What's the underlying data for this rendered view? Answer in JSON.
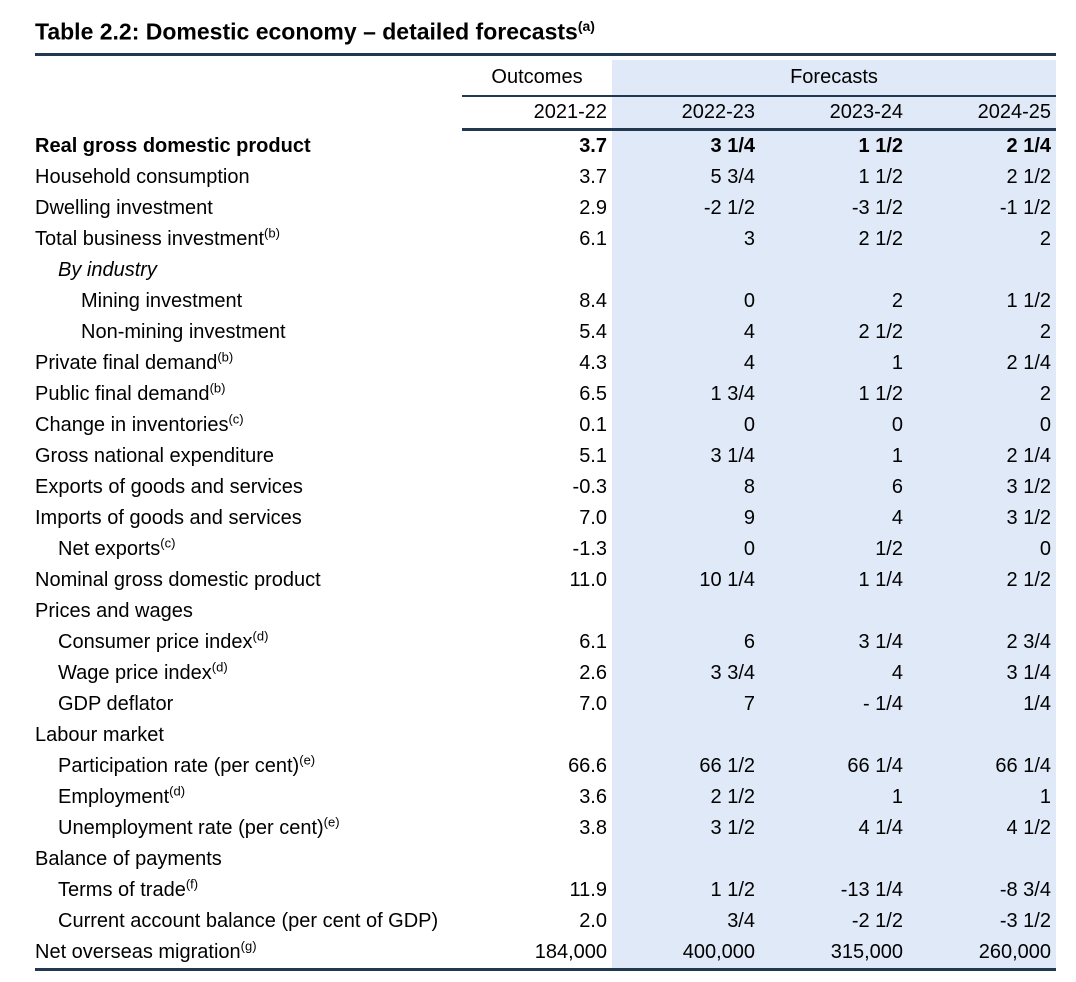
{
  "title": {
    "text": "Table 2.2: Domestic economy – detailed forecasts",
    "sup": "(a)"
  },
  "colors": {
    "rule": "#223850",
    "forecast_bg": "#DFE9F7"
  },
  "header": {
    "outcomes_label": "Outcomes",
    "forecasts_label": "Forecasts",
    "years": [
      "2021-22",
      "2022-23",
      "2023-24",
      "2024-25"
    ]
  },
  "rows": [
    {
      "label": "Real gross domestic product",
      "sup": "",
      "indent": 0,
      "bold": true,
      "italic": false,
      "values": [
        "3.7",
        "3 1/4",
        "1 1/2",
        "2 1/4"
      ]
    },
    {
      "label": "Household consumption",
      "sup": "",
      "indent": 0,
      "bold": false,
      "italic": false,
      "values": [
        "3.7",
        "5 3/4",
        "1 1/2",
        "2 1/2"
      ]
    },
    {
      "label": "Dwelling investment",
      "sup": "",
      "indent": 0,
      "bold": false,
      "italic": false,
      "values": [
        "2.9",
        "-2 1/2",
        "-3 1/2",
        "-1 1/2"
      ]
    },
    {
      "label": "Total business investment",
      "sup": "(b)",
      "indent": 0,
      "bold": false,
      "italic": false,
      "values": [
        "6.1",
        "3",
        "2 1/2",
        "2"
      ]
    },
    {
      "label": "By industry",
      "sup": "",
      "indent": 1,
      "bold": false,
      "italic": true,
      "values": [
        "",
        "",
        "",
        ""
      ]
    },
    {
      "label": "Mining investment",
      "sup": "",
      "indent": 2,
      "bold": false,
      "italic": false,
      "values": [
        "8.4",
        "0",
        "2",
        "1 1/2"
      ]
    },
    {
      "label": "Non-mining investment",
      "sup": "",
      "indent": 2,
      "bold": false,
      "italic": false,
      "values": [
        "5.4",
        "4",
        "2 1/2",
        "2"
      ]
    },
    {
      "label": "Private final demand",
      "sup": "(b)",
      "indent": 0,
      "bold": false,
      "italic": false,
      "values": [
        "4.3",
        "4",
        "1",
        "2 1/4"
      ]
    },
    {
      "label": "Public final demand",
      "sup": "(b)",
      "indent": 0,
      "bold": false,
      "italic": false,
      "values": [
        "6.5",
        "1 3/4",
        "1 1/2",
        "2"
      ]
    },
    {
      "label": "Change in inventories",
      "sup": "(c)",
      "indent": 0,
      "bold": false,
      "italic": false,
      "values": [
        "0.1",
        "0",
        "0",
        "0"
      ]
    },
    {
      "label": "Gross national expenditure",
      "sup": "",
      "indent": 0,
      "bold": false,
      "italic": false,
      "values": [
        "5.1",
        "3 1/4",
        "1",
        "2 1/4"
      ]
    },
    {
      "label": "Exports of goods and services",
      "sup": "",
      "indent": 0,
      "bold": false,
      "italic": false,
      "values": [
        "-0.3",
        "8",
        "6",
        "3 1/2"
      ]
    },
    {
      "label": "Imports of goods and services",
      "sup": "",
      "indent": 0,
      "bold": false,
      "italic": false,
      "values": [
        "7.0",
        "9",
        "4",
        "3 1/2"
      ]
    },
    {
      "label": "Net exports",
      "sup": "(c)",
      "indent": 1,
      "bold": false,
      "italic": false,
      "values": [
        "-1.3",
        "0",
        "1/2",
        "0"
      ]
    },
    {
      "label": "Nominal gross domestic product",
      "sup": "",
      "indent": 0,
      "bold": false,
      "italic": false,
      "values": [
        "11.0",
        "10 1/4",
        "1 1/4",
        "2 1/2"
      ]
    },
    {
      "label": "Prices and wages",
      "sup": "",
      "indent": 0,
      "bold": false,
      "italic": false,
      "values": [
        "",
        "",
        "",
        ""
      ]
    },
    {
      "label": "Consumer price index",
      "sup": "(d)",
      "indent": 1,
      "bold": false,
      "italic": false,
      "values": [
        "6.1",
        "6",
        "3 1/4",
        "2 3/4"
      ]
    },
    {
      "label": "Wage price index",
      "sup": "(d)",
      "indent": 1,
      "bold": false,
      "italic": false,
      "values": [
        "2.6",
        "3 3/4",
        "4",
        "3 1/4"
      ]
    },
    {
      "label": "GDP deflator",
      "sup": "",
      "indent": 1,
      "bold": false,
      "italic": false,
      "values": [
        "7.0",
        "7",
        "- 1/4",
        "1/4"
      ]
    },
    {
      "label": "Labour market",
      "sup": "",
      "indent": 0,
      "bold": false,
      "italic": false,
      "values": [
        "",
        "",
        "",
        ""
      ]
    },
    {
      "label": "Participation rate (per cent)",
      "sup": "(e)",
      "indent": 1,
      "bold": false,
      "italic": false,
      "values": [
        "66.6",
        "66 1/2",
        "66 1/4",
        "66 1/4"
      ]
    },
    {
      "label": "Employment",
      "sup": "(d)",
      "indent": 1,
      "bold": false,
      "italic": false,
      "values": [
        "3.6",
        "2 1/2",
        "1",
        "1"
      ]
    },
    {
      "label": "Unemployment rate (per cent)",
      "sup": "(e)",
      "indent": 1,
      "bold": false,
      "italic": false,
      "values": [
        "3.8",
        "3 1/2",
        "4 1/4",
        "4 1/2"
      ]
    },
    {
      "label": "Balance of payments",
      "sup": "",
      "indent": 0,
      "bold": false,
      "italic": false,
      "values": [
        "",
        "",
        "",
        ""
      ]
    },
    {
      "label": "Terms of trade",
      "sup": "(f)",
      "indent": 1,
      "bold": false,
      "italic": false,
      "values": [
        "11.9",
        "1 1/2",
        "-13 1/4",
        "-8 3/4"
      ]
    },
    {
      "label": "Current account balance (per cent of GDP)",
      "sup": "",
      "indent": 1,
      "bold": false,
      "italic": false,
      "values": [
        "2.0",
        "3/4",
        "-2 1/2",
        "-3 1/2"
      ]
    },
    {
      "label": "Net overseas migration",
      "sup": "(g)",
      "indent": 0,
      "bold": false,
      "italic": false,
      "values": [
        "184,000",
        "400,000",
        "315,000",
        "260,000"
      ]
    }
  ]
}
